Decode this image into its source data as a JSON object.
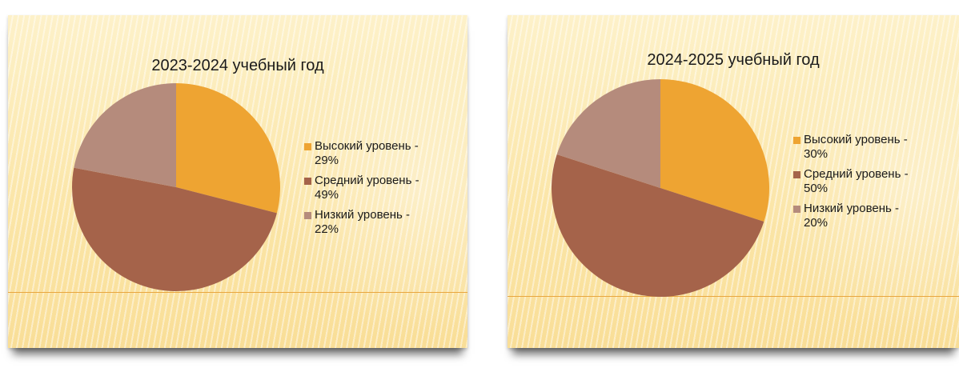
{
  "slides": [
    {
      "chart_index": 0
    },
    {
      "chart_index": 1
    }
  ],
  "colors": {
    "high": "#eea432",
    "medium": "#a5634a",
    "low": "#b58b7c"
  },
  "chart_data": [
    {
      "type": "pie",
      "title": "2023-2024 учебный год",
      "categories": [
        "Высокий уровень - 29%",
        "Средний уровень - 49%",
        "Низкий уровень - 22%"
      ],
      "values": [
        29,
        49,
        22
      ],
      "colors": [
        "#eea432",
        "#a5634a",
        "#b58b7c"
      ],
      "legend": "right"
    },
    {
      "type": "pie",
      "title": "2024-2025 учебный год",
      "categories": [
        "Высокий уровень - 30%",
        "Средний уровень - 50%",
        "Низкий уровень - 20%"
      ],
      "values": [
        30,
        50,
        20
      ],
      "colors": [
        "#eea432",
        "#a5634a",
        "#b58b7c"
      ],
      "legend": "right"
    }
  ]
}
